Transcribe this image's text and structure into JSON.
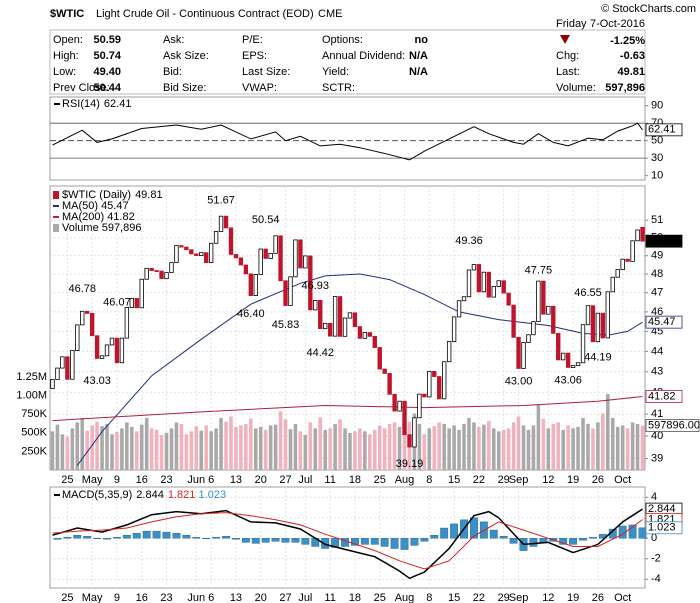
{
  "header": {
    "symbol": "$WTIC",
    "name": "Light Crude Oil - Continuous Contract (EOD)",
    "exchange": "CME",
    "credit": "© StockCharts.com",
    "weekday": "Friday",
    "date": "7-Oct-2016",
    "change_pct": "-1.25%",
    "rows": [
      [
        {
          "label": "Open:",
          "value": "50.59"
        },
        {
          "label": "Ask:"
        },
        {
          "label": "P/E:"
        },
        {
          "label": "Options:",
          "value": "no"
        }
      ],
      [
        {
          "label": "High:",
          "value": "50.74"
        },
        {
          "label": "Ask Size:"
        },
        {
          "label": "EPS:"
        },
        {
          "label": "Annual Dividend:",
          "value": "N/A"
        }
      ],
      [
        {
          "label": "Low:",
          "value": "49.40"
        },
        {
          "label": "Bid:"
        },
        {
          "label": "Last Size:"
        },
        {
          "label": "Yield:",
          "value": "N/A"
        }
      ],
      [
        {
          "label": "Prev Close:",
          "value": "50.44"
        },
        {
          "label": "Bid Size:"
        },
        {
          "label": "VWAP:"
        },
        {
          "label": "SCTR:"
        }
      ]
    ],
    "right": [
      {
        "label": "Chg:",
        "value": "-0.63"
      },
      {
        "label": "Last:",
        "value": "49.81"
      },
      {
        "label": "Volume:",
        "value": "597,896"
      }
    ]
  },
  "chart_data": [
    {
      "type": "line",
      "ylim": [
        5,
        100
      ],
      "yticks": [
        10,
        30,
        50,
        70,
        90
      ],
      "levels": [
        30,
        70
      ],
      "centerline": 50,
      "grid": false,
      "series": [
        {
          "name": "RSI(14)",
          "last": 62.41,
          "color": "#000000",
          "x": [
            0,
            6,
            9,
            12,
            18,
            25,
            30,
            34,
            40,
            45,
            47,
            50,
            54,
            58,
            62,
            68,
            72,
            75,
            80,
            85,
            88,
            93,
            95,
            98,
            101,
            104,
            108,
            111,
            114,
            117,
            118,
            119
          ],
          "values": [
            45,
            62,
            48,
            52,
            64,
            68,
            63,
            68,
            52,
            60,
            50,
            55,
            44,
            46,
            42,
            34,
            28,
            38,
            52,
            66,
            58,
            48,
            46,
            58,
            48,
            44,
            53,
            51,
            61,
            67,
            70,
            62.41
          ]
        }
      ]
    },
    {
      "type": "candlestick",
      "title": "$WTIC (Daily)",
      "last": 49.81,
      "log_y": true,
      "grid": true,
      "ylim": [
        38.5,
        53
      ],
      "yticks": [
        39,
        40,
        41,
        42,
        43,
        44,
        45,
        46,
        47,
        48,
        49,
        50,
        51
      ],
      "colors": {
        "up": "#000000",
        "down": "#c0142c"
      },
      "categories": [
        null,
        null,
        null,
        "25",
        null,
        null,
        null,
        null,
        "May",
        null,
        null,
        null,
        null,
        "9",
        null,
        null,
        null,
        null,
        "16",
        null,
        null,
        null,
        null,
        "23",
        null,
        null,
        null,
        null,
        null,
        "Jun",
        null,
        null,
        "6",
        null,
        null,
        null,
        null,
        "13",
        null,
        null,
        null,
        null,
        "20",
        null,
        null,
        null,
        null,
        "27",
        null,
        null,
        null,
        "Jul",
        null,
        null,
        null,
        null,
        "11",
        null,
        null,
        null,
        null,
        "18",
        null,
        null,
        null,
        null,
        "25",
        null,
        null,
        null,
        null,
        "Aug",
        null,
        null,
        null,
        null,
        "8",
        null,
        null,
        null,
        null,
        "15",
        null,
        null,
        null,
        null,
        "22",
        null,
        null,
        null,
        null,
        "29",
        null,
        null,
        "Sep",
        null,
        null,
        null,
        null,
        null,
        "12",
        null,
        null,
        null,
        null,
        "19",
        null,
        null,
        null,
        null,
        "26",
        null,
        null,
        null,
        null,
        "Oct",
        null,
        null,
        null,
        null
      ],
      "open": [
        42.2,
        42.63,
        43.18,
        43.73,
        42.64,
        44.04,
        45.33,
        46.03,
        45.92,
        44.78,
        43.65,
        43.78,
        44.32,
        44.66,
        43.44,
        44.66,
        46.23,
        46.7,
        46.21,
        47.72,
        48.31,
        48.19,
        48.16,
        47.75,
        48.08,
        48.62,
        49.56,
        49.48,
        49.33,
        49.1,
        49.01,
        49.17,
        48.62,
        49.69,
        50.36,
        51.23,
        50.56,
        49.07,
        48.88,
        48.49,
        48.01,
        46.85,
        47.98,
        49.37,
        48.85,
        49.13,
        50.11,
        47.64,
        46.33,
        47.85,
        49.88,
        48.33,
        48.99,
        46.1,
        46.6,
        45.14,
        45.41,
        44.76,
        46.8,
        44.75,
        45.68,
        45.95,
        45.24,
        44.65,
        44.94,
        44.75,
        44.19,
        43.13,
        42.92,
        41.92,
        41.14,
        41.6,
        40.06,
        39.51,
        40.83,
        41.93,
        41.8,
        43.02,
        42.77,
        41.71,
        43.49,
        44.49,
        45.74,
        46.58,
        46.79,
        48.22,
        48.52,
        47.05,
        48.1,
        46.77,
        47.33,
        47.64,
        46.98,
        46.35,
        44.7,
        43.16,
        44.44,
        44.83,
        45.5,
        47.62,
        45.88,
        46.29,
        44.9,
        43.58,
        43.91,
        43.21,
        43.3,
        43.44,
        45.34,
        46.32,
        44.48,
        45.93,
        44.67,
        47.05,
        47.83,
        48.24,
        48.81,
        48.69,
        49.83,
        50.59
      ],
      "close": [
        42.63,
        43.18,
        43.73,
        42.64,
        44.04,
        45.33,
        46.03,
        45.92,
        44.78,
        43.65,
        43.78,
        44.32,
        44.66,
        43.44,
        44.66,
        46.23,
        46.7,
        46.21,
        47.72,
        48.31,
        48.19,
        48.16,
        47.75,
        48.08,
        48.62,
        49.56,
        49.48,
        49.33,
        49.1,
        49.01,
        49.17,
        48.62,
        49.69,
        50.36,
        51.23,
        50.56,
        49.07,
        48.88,
        48.49,
        48.01,
        46.85,
        47.98,
        49.37,
        48.85,
        49.13,
        50.11,
        47.64,
        46.33,
        47.85,
        49.88,
        48.33,
        48.99,
        46.1,
        46.6,
        45.14,
        45.41,
        44.76,
        46.8,
        44.75,
        45.68,
        45.95,
        45.24,
        44.65,
        44.94,
        44.75,
        44.19,
        43.13,
        42.92,
        41.92,
        41.14,
        41.6,
        40.06,
        39.51,
        40.83,
        41.93,
        41.8,
        43.02,
        42.77,
        41.71,
        43.49,
        44.49,
        45.74,
        46.58,
        46.79,
        48.22,
        48.52,
        47.05,
        48.1,
        46.77,
        47.33,
        47.64,
        46.98,
        46.35,
        44.7,
        43.16,
        44.44,
        44.83,
        45.5,
        47.62,
        45.88,
        46.29,
        44.9,
        43.58,
        43.91,
        43.21,
        43.3,
        43.44,
        45.34,
        46.32,
        44.48,
        45.93,
        44.67,
        47.05,
        47.83,
        48.24,
        48.81,
        48.69,
        49.83,
        50.44,
        49.81
      ],
      "overlays": [
        {
          "name": "MA(50)",
          "last": 45.47,
          "color": "#1f2f7a",
          "x": [
            5,
            10,
            20,
            30,
            40,
            50,
            55,
            62,
            68,
            75,
            82,
            90,
            100,
            107,
            112,
            116,
            119
          ],
          "values": [
            38.7,
            40.2,
            42.8,
            44.6,
            46.4,
            47.5,
            47.9,
            48.0,
            47.7,
            46.9,
            46.0,
            45.6,
            45.3,
            44.9,
            44.8,
            45.0,
            45.47
          ]
        },
        {
          "name": "MA(200)",
          "last": 41.82,
          "color": "#b0203a",
          "x": [
            0,
            30,
            55,
            75,
            95,
            110,
            119
          ],
          "values": [
            40.7,
            41.1,
            41.4,
            41.3,
            41.4,
            41.6,
            41.82
          ]
        }
      ],
      "volume": {
        "name": "Volume",
        "last": 597896,
        "last_label": "597,896",
        "axis_label": "597896.00",
        "up_color": "#a9a9a9",
        "down_color": "#f0b2bd",
        "y2lim": [
          0,
          3820000
        ],
        "y2ticks": [
          {
            "value": 250000,
            "label": "250K"
          },
          {
            "value": 500000,
            "label": "500K"
          },
          {
            "value": 750000,
            "label": "750K"
          },
          {
            "value": 1000000,
            "label": "1.00M"
          },
          {
            "value": 1250000,
            "label": "1.25M"
          }
        ],
        "values": [
          520000,
          610000,
          480000,
          450000,
          560000,
          640000,
          700000,
          530000,
          600000,
          650000,
          590000,
          620000,
          480000,
          510000,
          560000,
          640000,
          580000,
          520000,
          610000,
          700000,
          560000,
          540000,
          470000,
          500000,
          560000,
          640000,
          620000,
          480000,
          520000,
          590000,
          530000,
          600000,
          520000,
          560000,
          700000,
          650000,
          720000,
          580000,
          600000,
          620000,
          690000,
          560000,
          580000,
          540000,
          600000,
          610000,
          790000,
          680000,
          550000,
          620000,
          520000,
          470000,
          640000,
          560000,
          710000,
          540000,
          560000,
          620000,
          680000,
          560000,
          500000,
          520000,
          560000,
          520000,
          480000,
          540000,
          600000,
          560000,
          620000,
          640000,
          580000,
          700000,
          650000,
          760000,
          620000,
          480000,
          560000,
          590000,
          640000,
          620000,
          560000,
          600000,
          540000,
          620000,
          700000,
          640000,
          580000,
          610000,
          660000,
          560000,
          520000,
          540000,
          560000,
          640000,
          720000,
          600000,
          540000,
          600000,
          880000,
          690000,
          560000,
          620000,
          640000,
          540000,
          600000,
          560000,
          580000,
          700000,
          620000,
          560000,
          640000,
          760000,
          1020000,
          700000,
          580000,
          600000,
          560000,
          640000,
          620000,
          597896
        ]
      },
      "annotations": {
        "highs": [
          {
            "x": 6,
            "value": 46.78,
            "label": "46.78"
          },
          {
            "x": 13,
            "value": 46.07,
            "label": "46.07"
          },
          {
            "x": 34,
            "value": 51.67,
            "label": "51.67"
          },
          {
            "x": 43,
            "value": 50.54,
            "label": "50.54"
          },
          {
            "x": 53,
            "value": 46.93,
            "label": "46.93"
          },
          {
            "x": 84,
            "value": 49.36,
            "label": "49.36"
          },
          {
            "x": 98,
            "value": 47.75,
            "label": "47.75"
          },
          {
            "x": 108,
            "value": 46.55,
            "label": "46.55"
          }
        ],
        "lows": [
          {
            "x": 9,
            "value": 43.03,
            "label": "43.03"
          },
          {
            "x": 40,
            "value": 46.4,
            "label": "46.40"
          },
          {
            "x": 47,
            "value": 45.83,
            "label": "45.83"
          },
          {
            "x": 54,
            "value": 44.42,
            "label": "44.42"
          },
          {
            "x": 72,
            "value": 39.19,
            "label": "39.19"
          },
          {
            "x": 94,
            "value": 43.0,
            "label": "43.00"
          },
          {
            "x": 104,
            "value": 43.06,
            "label": "43.06"
          },
          {
            "x": 110,
            "value": 44.19,
            "label": "44.19"
          }
        ]
      }
    },
    {
      "type": "macd",
      "ylim": [
        -4.85,
        5
      ],
      "yticks": [
        4,
        2,
        0,
        -2,
        -4
      ],
      "grid": true,
      "series": [
        {
          "name": "MACD(5,35,9)",
          "last": 2.844,
          "color": "#000000",
          "style": "line",
          "x": [
            0,
            5,
            10,
            15,
            20,
            25,
            30,
            35,
            40,
            45,
            50,
            55,
            60,
            65,
            70,
            72,
            75,
            80,
            85,
            88,
            90,
            95,
            100,
            105,
            110,
            115,
            119
          ],
          "values": [
            0.3,
            1.0,
            0.6,
            1.3,
            2.3,
            2.6,
            2.4,
            2.7,
            1.6,
            1.5,
            0.9,
            -0.6,
            -1.2,
            -1.8,
            -3.2,
            -3.9,
            -3.3,
            -1.0,
            2.2,
            2.6,
            2.0,
            -0.6,
            -0.4,
            -1.4,
            -0.6,
            1.6,
            2.844
          ]
        },
        {
          "last": 1.821,
          "color": "#d62020",
          "style": "line",
          "x": [
            0,
            5,
            10,
            15,
            20,
            25,
            30,
            35,
            40,
            45,
            50,
            55,
            60,
            65,
            70,
            75,
            80,
            85,
            90,
            95,
            100,
            105,
            110,
            115,
            119
          ],
          "values": [
            0.5,
            0.7,
            0.8,
            1.0,
            1.6,
            2.1,
            2.4,
            2.5,
            2.2,
            1.8,
            1.3,
            0.4,
            -0.4,
            -1.2,
            -2.2,
            -3.0,
            -2.2,
            0.2,
            1.6,
            0.8,
            0.0,
            -0.8,
            -0.8,
            0.4,
            1.821
          ]
        },
        {
          "last": 1.023,
          "color": "#3b8fc4",
          "style": "bar",
          "x": [
            1,
            3,
            5,
            7,
            9,
            11,
            13,
            15,
            17,
            19,
            21,
            23,
            25,
            27,
            29,
            31,
            33,
            35,
            37,
            39,
            41,
            43,
            45,
            47,
            49,
            51,
            53,
            55,
            57,
            59,
            61,
            63,
            65,
            67,
            69,
            71,
            73,
            75,
            77,
            79,
            81,
            83,
            85,
            87,
            89,
            91,
            93,
            95,
            97,
            99,
            101,
            103,
            105,
            107,
            109,
            111,
            113,
            115,
            117,
            119
          ],
          "values": [
            -0.1,
            0.1,
            0.3,
            0.2,
            0.0,
            -0.1,
            0.1,
            0.3,
            0.5,
            0.7,
            0.7,
            0.6,
            0.5,
            0.3,
            0.1,
            0.0,
            0.1,
            0.2,
            -0.1,
            -0.4,
            -0.5,
            -0.4,
            -0.3,
            -0.4,
            -0.4,
            -0.6,
            -0.8,
            -1.0,
            -0.9,
            -0.8,
            -0.7,
            -0.6,
            -0.6,
            -0.8,
            -1.0,
            -1.1,
            -0.7,
            -0.3,
            0.3,
            1.0,
            1.4,
            1.8,
            2.0,
            1.6,
            0.8,
            0.2,
            -0.5,
            -1.2,
            -0.8,
            -0.4,
            -0.3,
            -0.6,
            -0.6,
            -0.2,
            0.1,
            0.4,
            0.9,
            1.2,
            1.3,
            1.023
          ]
        }
      ]
    }
  ]
}
